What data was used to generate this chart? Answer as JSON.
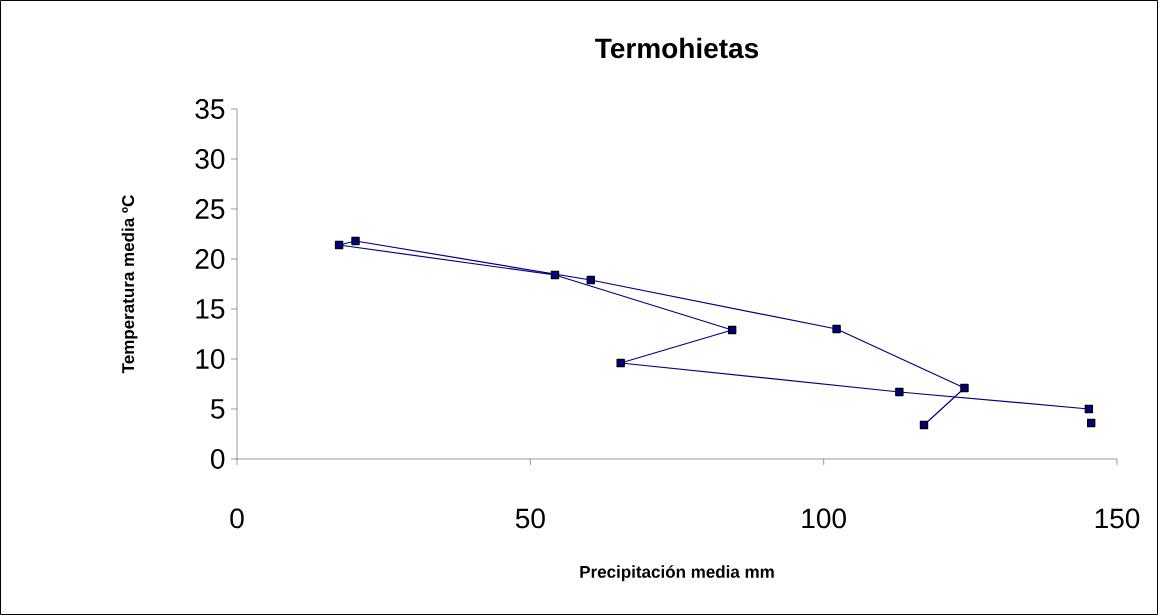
{
  "chart_data": {
    "type": "line",
    "title": "Termohietas",
    "xlabel": "Precipitación media mm",
    "ylabel": "Temperatura media ºC",
    "x": [
      117.1,
      124.0,
      102.2,
      60.3,
      20.2,
      17.4,
      54.2,
      84.4,
      65.4,
      112.9,
      145.2,
      null,
      145.6
    ],
    "series": [
      {
        "color": "#000080",
        "values": [
          3.4,
          7.1,
          13.0,
          17.9,
          21.8,
          21.4,
          18.4,
          12.9,
          9.6,
          6.7,
          5.0,
          null,
          3.6
        ]
      }
    ],
    "xlim": [
      0,
      150
    ],
    "xticks": [
      0,
      50,
      100,
      150
    ],
    "ylim": [
      0,
      35
    ],
    "yticks": [
      0,
      5,
      10,
      15,
      20,
      25,
      30,
      35
    ],
    "grid": false,
    "marker": "square",
    "line_style": "solid"
  }
}
